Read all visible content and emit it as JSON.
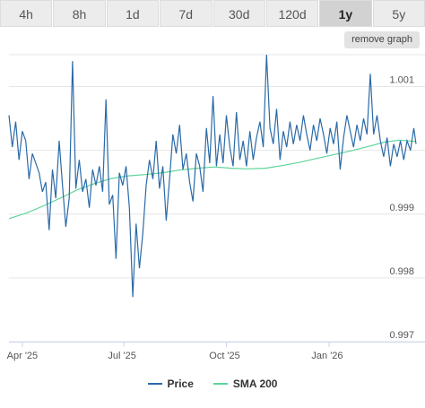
{
  "tabs": [
    {
      "label": "4h",
      "active": false
    },
    {
      "label": "8h",
      "active": false
    },
    {
      "label": "1d",
      "active": false
    },
    {
      "label": "7d",
      "active": false
    },
    {
      "label": "30d",
      "active": false
    },
    {
      "label": "120d",
      "active": false
    },
    {
      "label": "1y",
      "active": true
    },
    {
      "label": "5y",
      "active": false
    }
  ],
  "remove_graph_label": "remove graph",
  "colors": {
    "price": "#2a6aa8",
    "sma": "#5fd49a",
    "grid": "#e6e6e6",
    "axis": "#ccd6eb"
  },
  "chart_data": {
    "type": "line",
    "xlim": [
      "2025-03-20",
      "2026-03-20"
    ],
    "ylim": [
      0.997,
      1.0015
    ],
    "yticks": [
      {
        "value": 0.997,
        "label": "0.997"
      },
      {
        "value": 0.998,
        "label": "0.998"
      },
      {
        "value": 0.999,
        "label": "0.999"
      },
      {
        "value": 1.0,
        "label": ""
      },
      {
        "value": 1.001,
        "label": "1.001"
      }
    ],
    "xticks": [
      {
        "date": "2025-04-01",
        "label": "Apr '25"
      },
      {
        "date": "2025-07-01",
        "label": "Jul '25"
      },
      {
        "date": "2025-10-01",
        "label": "Oct '25"
      },
      {
        "date": "2026-01-01",
        "label": "Jan '26"
      }
    ],
    "grid": true,
    "legend_position": "bottom-center",
    "series": [
      {
        "name": "Price",
        "points": [
          [
            "2025-03-20",
            1.00055
          ],
          [
            "2025-03-23",
            1.00005
          ],
          [
            "2025-03-26",
            1.00045
          ],
          [
            "2025-03-29",
            0.99985
          ],
          [
            "2025-04-01",
            1.0003
          ],
          [
            "2025-04-04",
            1.00015
          ],
          [
            "2025-04-07",
            0.99955
          ],
          [
            "2025-04-10",
            0.99995
          ],
          [
            "2025-04-13",
            0.9998
          ],
          [
            "2025-04-16",
            0.99965
          ],
          [
            "2025-04-19",
            0.99935
          ],
          [
            "2025-04-22",
            0.9995
          ],
          [
            "2025-04-25",
            0.99875
          ],
          [
            "2025-04-28",
            0.9997
          ],
          [
            "2025-05-01",
            0.99925
          ],
          [
            "2025-05-04",
            1.00015
          ],
          [
            "2025-05-07",
            0.99945
          ],
          [
            "2025-05-10",
            0.9988
          ],
          [
            "2025-05-13",
            0.99925
          ],
          [
            "2025-05-16",
            1.0014
          ],
          [
            "2025-05-19",
            0.9994
          ],
          [
            "2025-05-22",
            0.99985
          ],
          [
            "2025-05-25",
            0.99935
          ],
          [
            "2025-05-28",
            0.99955
          ],
          [
            "2025-05-31",
            0.9991
          ],
          [
            "2025-06-03",
            0.9997
          ],
          [
            "2025-06-06",
            0.99945
          ],
          [
            "2025-06-09",
            0.99975
          ],
          [
            "2025-06-12",
            0.99935
          ],
          [
            "2025-06-15",
            1.0008
          ],
          [
            "2025-06-18",
            0.99915
          ],
          [
            "2025-06-21",
            0.9993
          ],
          [
            "2025-06-24",
            0.9983
          ],
          [
            "2025-06-27",
            0.99965
          ],
          [
            "2025-06-30",
            0.99945
          ],
          [
            "2025-07-03",
            0.99975
          ],
          [
            "2025-07-06",
            0.9991
          ],
          [
            "2025-07-09",
            0.9977
          ],
          [
            "2025-07-12",
            0.99885
          ],
          [
            "2025-07-15",
            0.99815
          ],
          [
            "2025-07-18",
            0.9987
          ],
          [
            "2025-07-21",
            0.99945
          ],
          [
            "2025-07-24",
            0.99985
          ],
          [
            "2025-07-27",
            0.99955
          ],
          [
            "2025-07-30",
            1.00015
          ],
          [
            "2025-08-02",
            0.9994
          ],
          [
            "2025-08-05",
            0.99975
          ],
          [
            "2025-08-08",
            0.9989
          ],
          [
            "2025-08-11",
            0.99955
          ],
          [
            "2025-08-14",
            1.00025
          ],
          [
            "2025-08-17",
            0.99995
          ],
          [
            "2025-08-20",
            1.0004
          ],
          [
            "2025-08-23",
            0.9997
          ],
          [
            "2025-08-26",
            0.99995
          ],
          [
            "2025-08-29",
            0.9995
          ],
          [
            "2025-09-01",
            0.9992
          ],
          [
            "2025-09-04",
            0.99995
          ],
          [
            "2025-09-07",
            0.99975
          ],
          [
            "2025-09-10",
            0.99935
          ],
          [
            "2025-09-13",
            1.00035
          ],
          [
            "2025-09-16",
            0.9998
          ],
          [
            "2025-09-19",
            1.00085
          ],
          [
            "2025-09-22",
            0.99975
          ],
          [
            "2025-09-25",
            1.00025
          ],
          [
            "2025-09-28",
            0.9998
          ],
          [
            "2025-10-01",
            1.00055
          ],
          [
            "2025-10-04",
            1.00005
          ],
          [
            "2025-10-07",
            0.99975
          ],
          [
            "2025-10-10",
            1.0006
          ],
          [
            "2025-10-13",
            0.99985
          ],
          [
            "2025-10-16",
            1.00015
          ],
          [
            "2025-10-19",
            0.99975
          ],
          [
            "2025-10-22",
            1.0003
          ],
          [
            "2025-10-25",
            0.99985
          ],
          [
            "2025-10-28",
            1.0002
          ],
          [
            "2025-10-31",
            1.00045
          ],
          [
            "2025-11-03",
            1.00005
          ],
          [
            "2025-11-06",
            1.0015
          ],
          [
            "2025-11-09",
            1.00035
          ],
          [
            "2025-11-12",
            1.0001
          ],
          [
            "2025-11-15",
            1.00065
          ],
          [
            "2025-11-18",
            0.99985
          ],
          [
            "2025-11-21",
            1.0003
          ],
          [
            "2025-11-24",
            1.00005
          ],
          [
            "2025-11-27",
            1.00045
          ],
          [
            "2025-11-30",
            1.0001
          ],
          [
            "2025-12-03",
            1.0004
          ],
          [
            "2025-12-06",
            1.00015
          ],
          [
            "2025-12-09",
            1.00055
          ],
          [
            "2025-12-12",
            1.00025
          ],
          [
            "2025-12-15",
            1.0
          ],
          [
            "2025-12-18",
            1.0004
          ],
          [
            "2025-12-21",
            1.00015
          ],
          [
            "2025-12-24",
            1.0005
          ],
          [
            "2025-12-27",
            1.00025
          ],
          [
            "2025-12-30",
            0.99995
          ],
          [
            "2026-01-02",
            1.00035
          ],
          [
            "2026-01-05",
            1.0001
          ],
          [
            "2026-01-08",
            1.00045
          ],
          [
            "2026-01-11",
            0.9997
          ],
          [
            "2026-01-14",
            1.0002
          ],
          [
            "2026-01-17",
            1.00055
          ],
          [
            "2026-01-20",
            1.0003
          ],
          [
            "2026-01-23",
            1.00005
          ],
          [
            "2026-01-26",
            1.0004
          ],
          [
            "2026-01-29",
            1.00015
          ],
          [
            "2026-02-01",
            1.0005
          ],
          [
            "2026-02-04",
            1.00025
          ],
          [
            "2026-02-07",
            1.0012
          ],
          [
            "2026-02-10",
            1.00025
          ],
          [
            "2026-02-13",
            1.00055
          ],
          [
            "2026-02-16",
            1.00015
          ],
          [
            "2026-02-19",
            0.9999
          ],
          [
            "2026-02-22",
            1.0002
          ],
          [
            "2026-02-25",
            0.99975
          ],
          [
            "2026-02-28",
            1.0001
          ],
          [
            "2026-03-03",
            0.9999
          ],
          [
            "2026-03-06",
            1.00015
          ],
          [
            "2026-03-09",
            0.99985
          ],
          [
            "2026-03-12",
            1.00015
          ],
          [
            "2026-03-15",
            1.0
          ],
          [
            "2026-03-18",
            1.00035
          ],
          [
            "2026-03-20",
            1.0001
          ]
        ]
      },
      {
        "name": "SMA 200",
        "points": [
          [
            "2025-03-20",
            0.99893
          ],
          [
            "2025-04-05",
            0.99902
          ],
          [
            "2025-04-20",
            0.99913
          ],
          [
            "2025-05-05",
            0.99925
          ],
          [
            "2025-05-20",
            0.99938
          ],
          [
            "2025-06-05",
            0.99948
          ],
          [
            "2025-06-20",
            0.99956
          ],
          [
            "2025-07-05",
            0.9996
          ],
          [
            "2025-07-20",
            0.99962
          ],
          [
            "2025-08-05",
            0.99965
          ],
          [
            "2025-08-20",
            0.99969
          ],
          [
            "2025-09-05",
            0.99972
          ],
          [
            "2025-09-20",
            0.99974
          ],
          [
            "2025-10-05",
            0.99972
          ],
          [
            "2025-10-20",
            0.99971
          ],
          [
            "2025-11-05",
            0.99972
          ],
          [
            "2025-11-20",
            0.99976
          ],
          [
            "2025-12-05",
            0.99981
          ],
          [
            "2025-12-20",
            0.99987
          ],
          [
            "2026-01-05",
            0.99993
          ],
          [
            "2026-01-20",
            0.99999
          ],
          [
            "2026-02-05",
            1.00006
          ],
          [
            "2026-02-20",
            1.00013
          ],
          [
            "2026-03-05",
            1.00016
          ],
          [
            "2026-03-20",
            1.00014
          ]
        ]
      }
    ]
  }
}
